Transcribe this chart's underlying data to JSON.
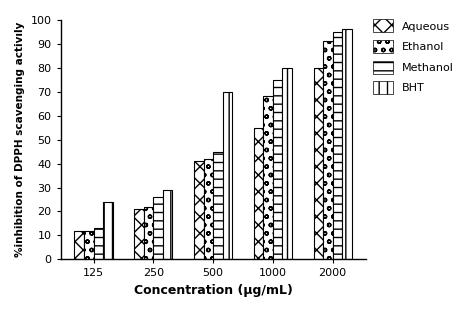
{
  "categories": [
    "125",
    "250",
    "500",
    "1000",
    "2000"
  ],
  "series": {
    "Aqueous": [
      12,
      21,
      41,
      55,
      80
    ],
    "Ethanol": [
      12,
      22,
      42,
      68,
      91
    ],
    "Methanol": [
      13,
      26,
      45,
      75,
      95
    ],
    "BHT": [
      24,
      29,
      70,
      80,
      96
    ]
  },
  "xlabel": "Concentration (μg/mL)",
  "ylabel": "%inhibition of DPPH scavenging activıly",
  "ylim": [
    0,
    100
  ],
  "yticks": [
    0,
    10,
    20,
    30,
    40,
    50,
    60,
    70,
    80,
    90,
    100
  ],
  "legend_labels": [
    "Aqueous",
    "Ethanol",
    "Methanol",
    "BHT"
  ],
  "bar_width": 0.16,
  "background_color": "#ffffff",
  "edge_color": "#000000",
  "axis_fontsize": 9,
  "tick_fontsize": 8,
  "legend_fontsize": 8
}
